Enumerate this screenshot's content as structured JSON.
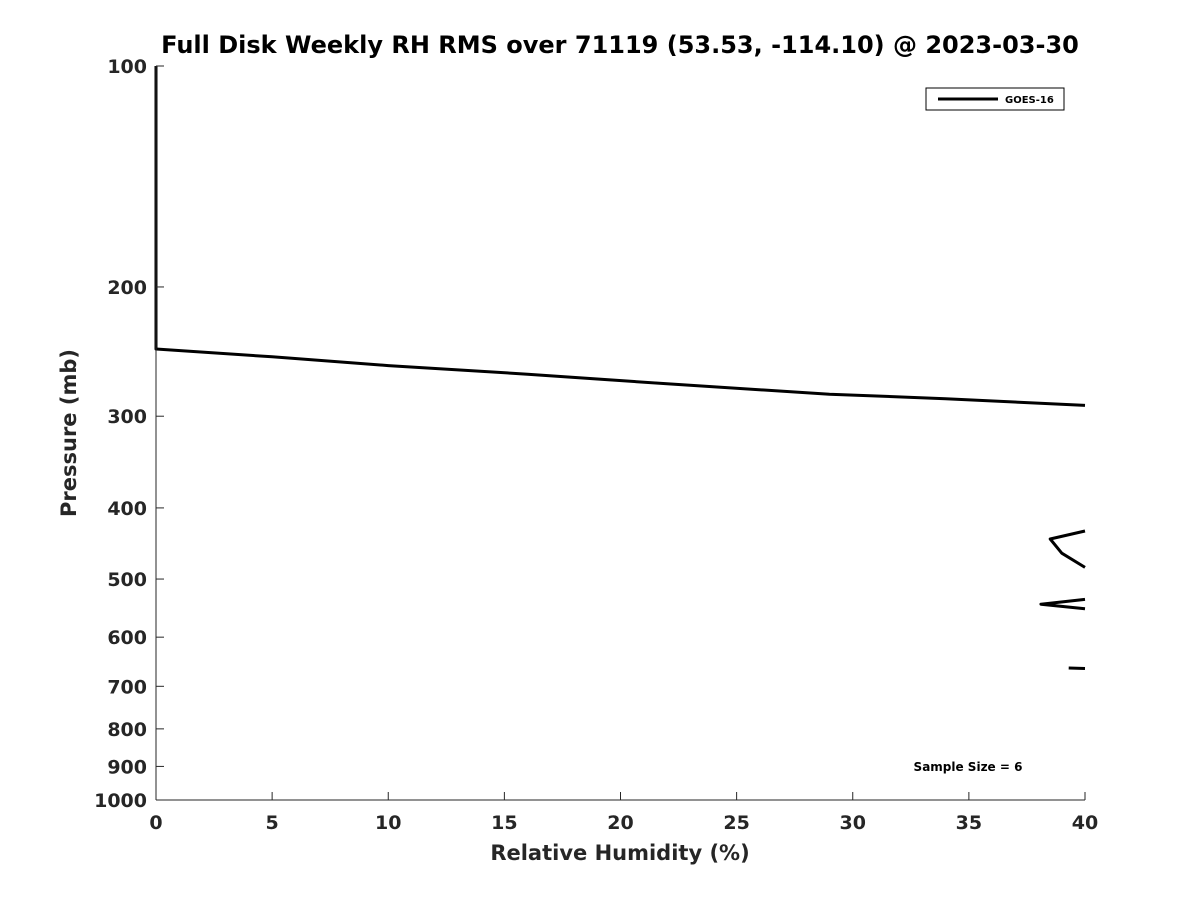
{
  "chart_data": {
    "type": "line",
    "title": "Full Disk Weekly RH RMS over 71119 (53.53, -114.10) @ 2023-03-30",
    "xlabel": "Relative Humidity (%)",
    "ylabel": "Pressure (mb)",
    "xlim": [
      0,
      40
    ],
    "ylim": [
      100,
      1000
    ],
    "y_scale": "log",
    "y_reversed": true,
    "x_ticks": [
      0,
      5,
      10,
      15,
      20,
      25,
      30,
      35,
      40
    ],
    "x_tick_labels": [
      "0",
      "5",
      "10",
      "15",
      "20",
      "25",
      "30",
      "35",
      "40"
    ],
    "y_ticks": [
      100,
      200,
      300,
      400,
      500,
      600,
      700,
      800,
      900,
      1000
    ],
    "y_tick_labels": [
      "100",
      "200",
      "300",
      "400",
      "500",
      "600",
      "700",
      "800",
      "900",
      "1000"
    ],
    "grid": false,
    "legend": {
      "placement": "top-right",
      "entries": [
        "GOES-16"
      ]
    },
    "series": [
      {
        "name": "GOES-16",
        "color": "#000000",
        "segments": [
          [
            {
              "x": 0,
              "y": 100
            },
            {
              "x": 0,
              "y": 200
            },
            {
              "x": 0,
              "y": 243
            },
            {
              "x": 5,
              "y": 249
            },
            {
              "x": 10,
              "y": 256
            },
            {
              "x": 16,
              "y": 263
            },
            {
              "x": 22,
              "y": 271
            },
            {
              "x": 29,
              "y": 280
            },
            {
              "x": 34,
              "y": 284
            },
            {
              "x": 40,
              "y": 290
            }
          ],
          [
            {
              "x": 40,
              "y": 430
            },
            {
              "x": 38.5,
              "y": 441
            },
            {
              "x": 39,
              "y": 461
            },
            {
              "x": 40,
              "y": 482
            }
          ],
          [
            {
              "x": 40,
              "y": 533
            },
            {
              "x": 38.1,
              "y": 541
            },
            {
              "x": 40,
              "y": 549
            }
          ],
          [
            {
              "x": 39.3,
              "y": 661
            },
            {
              "x": 40,
              "y": 662
            }
          ]
        ]
      }
    ],
    "annotations": [
      "Sample Size = 6"
    ]
  }
}
